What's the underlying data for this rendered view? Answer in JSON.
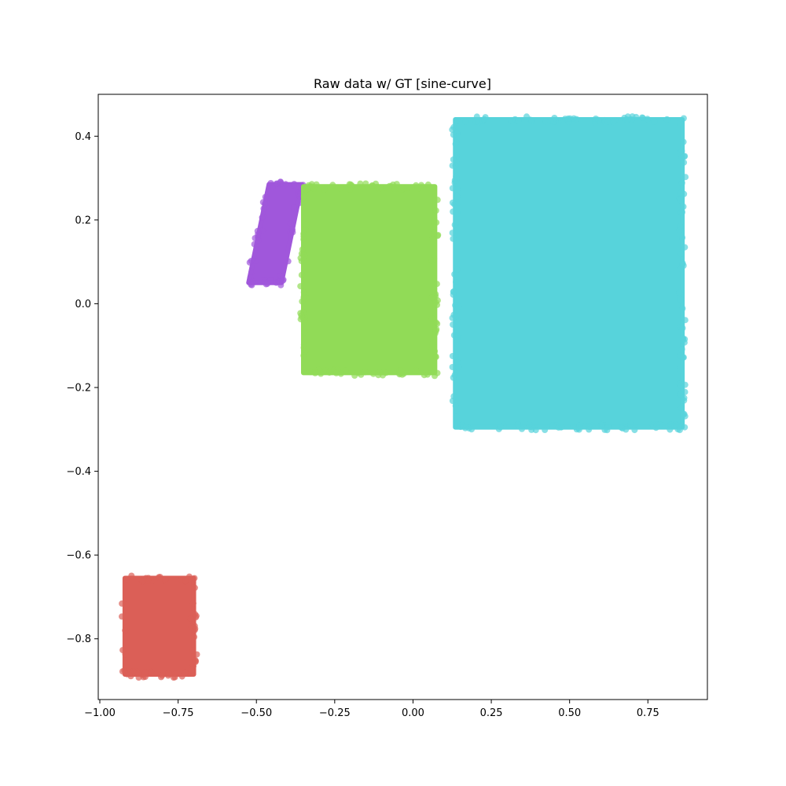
{
  "chart_data": {
    "type": "scatter",
    "title": "Raw data w/ GT [sine-curve]",
    "xlabel": "",
    "ylabel": "",
    "xlim": [
      -1.005,
      0.94
    ],
    "ylim": [
      -0.945,
      0.5
    ],
    "grid": false,
    "legend": "none",
    "x_ticks": [
      {
        "value": -1.0,
        "label": "−1.00"
      },
      {
        "value": -0.75,
        "label": "−0.75"
      },
      {
        "value": -0.5,
        "label": "−0.50"
      },
      {
        "value": -0.25,
        "label": "−0.25"
      },
      {
        "value": 0.0,
        "label": "0.00"
      },
      {
        "value": 0.25,
        "label": "0.25"
      },
      {
        "value": 0.5,
        "label": "0.50"
      },
      {
        "value": 0.75,
        "label": "0.75"
      }
    ],
    "y_ticks": [
      {
        "value": 0.4,
        "label": "0.4"
      },
      {
        "value": 0.2,
        "label": "0.2"
      },
      {
        "value": 0.0,
        "label": "0.0"
      },
      {
        "value": -0.2,
        "label": "−0.2"
      },
      {
        "value": -0.4,
        "label": "−0.4"
      },
      {
        "value": -0.6,
        "label": "−0.6"
      },
      {
        "value": -0.8,
        "label": "−0.8"
      }
    ],
    "clusters": [
      {
        "color": "#db5f57",
        "x_range": [
          -0.92,
          -0.7
        ],
        "y_range": [
          -0.885,
          -0.655
        ],
        "shape": "rect"
      },
      {
        "color": "#a057db",
        "shape": "parallelogram",
        "y_range": [
          0.05,
          0.285
        ],
        "x_at_top": [
          -0.46,
          -0.355
        ],
        "x_at_bottom": [
          -0.525,
          -0.42
        ]
      },
      {
        "color": "#91db57",
        "x_range": [
          -0.35,
          0.07
        ],
        "y_range": [
          -0.165,
          0.28
        ],
        "shape": "rect"
      },
      {
        "color": "#57d3db",
        "x_range": [
          0.135,
          0.86
        ],
        "y_range": [
          -0.295,
          0.44
        ],
        "shape": "rect"
      }
    ]
  }
}
